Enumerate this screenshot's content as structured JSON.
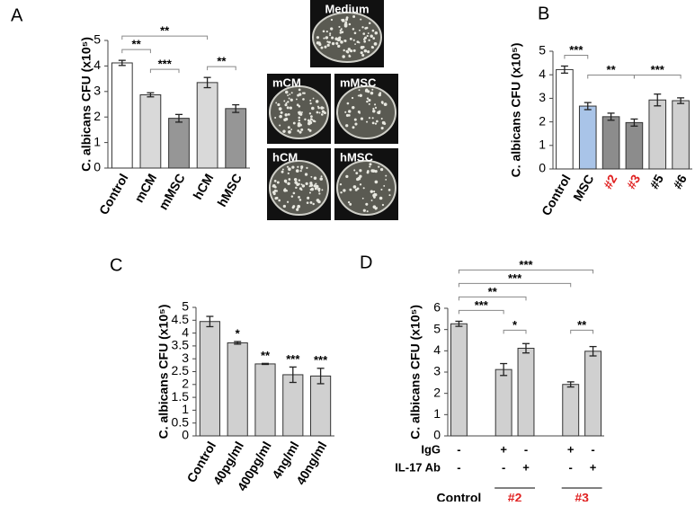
{
  "chart_data": [
    {
      "type": "bar",
      "panel": "A",
      "y_label": "C. albicans CFU (x10⁵)",
      "categories": [
        "Control",
        "mCM",
        "mMSC",
        "hCM",
        "hMSC"
      ],
      "values": [
        4.12,
        2.87,
        1.95,
        3.35,
        2.33
      ],
      "errors": [
        0.1,
        0.08,
        0.15,
        0.2,
        0.15
      ],
      "colors": [
        "#ffffff",
        "#d9d9d9",
        "#969696",
        "#d9d9d9",
        "#969696"
      ],
      "ylim": [
        0,
        5
      ],
      "yticks": [
        0,
        1,
        2,
        3,
        4,
        5
      ],
      "brackets": [
        {
          "from": 0,
          "to": 1,
          "label": "**"
        },
        {
          "from": 1,
          "to": 2,
          "label": "***"
        },
        {
          "from": 3,
          "to": 4,
          "label": "**"
        },
        {
          "from": 0,
          "to": 3,
          "label": "**"
        }
      ]
    },
    {
      "type": "bar",
      "panel": "B",
      "y_label": "C. albicans CFU (x10⁵)",
      "categories": [
        "Control",
        "MSC",
        "#2",
        "#3",
        "#5",
        "#6"
      ],
      "values": [
        4.22,
        2.67,
        2.22,
        1.97,
        2.93,
        2.9
      ],
      "errors": [
        0.15,
        0.15,
        0.15,
        0.15,
        0.25,
        0.12
      ],
      "colors": [
        "#ffffff",
        "#a9c4e8",
        "#8c8c8c",
        "#8c8c8c",
        "#d0d0d0",
        "#d0d0d0"
      ],
      "label_colors": [
        "#000000",
        "#000000",
        "#e02020",
        "#e02020",
        "#000000",
        "#000000"
      ],
      "ylim": [
        0,
        5
      ],
      "yticks": [
        0,
        1,
        2,
        3,
        4,
        5
      ],
      "brackets": [
        {
          "from": 0,
          "to": 1,
          "label": "***"
        },
        {
          "from": 1,
          "to": 3,
          "label": "**"
        },
        {
          "from": 3,
          "to": 5,
          "label": "***"
        }
      ]
    },
    {
      "type": "bar",
      "panel": "C",
      "y_label": "C. albicans CFU (x10⁵)",
      "categories": [
        "Control",
        "40pg/ml",
        "400pg/ml",
        "4ng/ml",
        "40ng/ml"
      ],
      "values": [
        4.45,
        3.62,
        2.8,
        2.38,
        2.33
      ],
      "errors": [
        0.2,
        0.05,
        0.02,
        0.3,
        0.3
      ],
      "annotations": [
        null,
        "*",
        "**",
        "***",
        "***"
      ],
      "color": "#d0d0d0",
      "ylim": [
        0,
        5
      ],
      "yticks": [
        0,
        0.5,
        1,
        1.5,
        2,
        2.5,
        3,
        3.5,
        4,
        4.5,
        5
      ]
    },
    {
      "type": "bar",
      "panel": "D",
      "y_label": "C. albicans CFU (x10⁵)",
      "values": [
        5.27,
        3.12,
        4.12,
        2.42,
        3.98
      ],
      "errors": [
        0.12,
        0.28,
        0.22,
        0.12,
        0.22
      ],
      "color": "#d0d0d0",
      "groups": [
        {
          "name": "Control",
          "color": "#000000",
          "size": 1
        },
        {
          "name": "#2",
          "color": "#e02020",
          "size": 2
        },
        {
          "name": "#3",
          "color": "#e02020",
          "size": 2
        }
      ],
      "rows": [
        {
          "name": "IgG",
          "marks": [
            "-",
            "+",
            "-",
            "+",
            "-"
          ]
        },
        {
          "name": "IL-17 Ab",
          "marks": [
            "-",
            "-",
            "+",
            "-",
            "+"
          ]
        }
      ],
      "ylim": [
        0,
        6
      ],
      "yticks": [
        0,
        1,
        2,
        3,
        4,
        5,
        6
      ],
      "brackets": [
        {
          "from": 0,
          "to": 1,
          "label": "***"
        },
        {
          "from": 1,
          "to": 2,
          "label": "*"
        },
        {
          "from": 3,
          "to": 4,
          "label": "**"
        },
        {
          "from": 0,
          "to": 2,
          "label": "**"
        },
        {
          "from": 0,
          "to": 3,
          "label": "***"
        },
        {
          "from": 0,
          "to": 4,
          "label": "***"
        }
      ]
    }
  ],
  "photos": {
    "labels": [
      "Medium",
      "mCM",
      "mMSC",
      "hCM",
      "hMSC"
    ]
  }
}
